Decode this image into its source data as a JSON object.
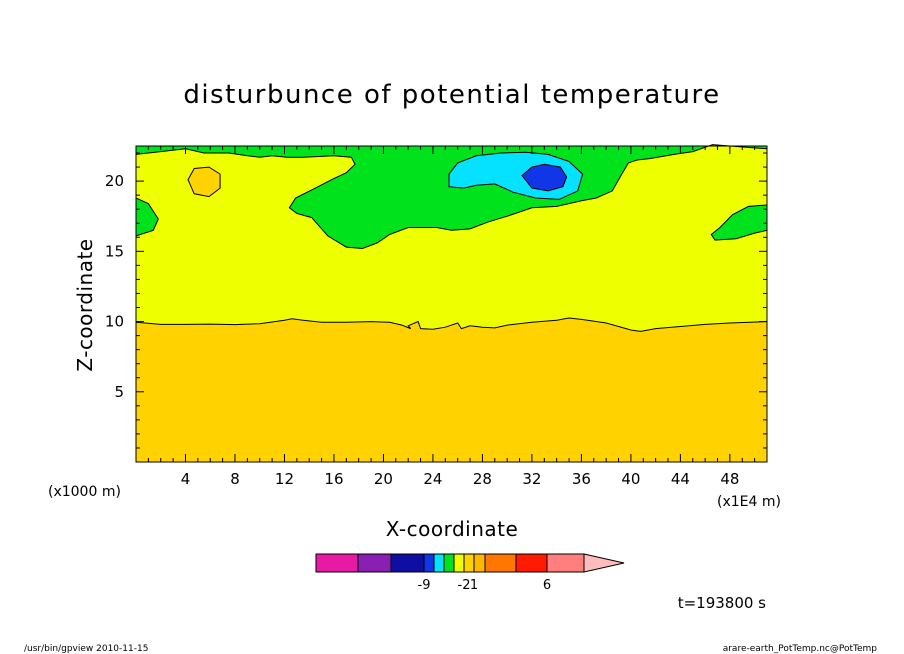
{
  "footer": {
    "left": "/usr/bin/gpview   2010-11-15",
    "right": "arare-earth_PotTemp.nc@PotTemp"
  },
  "chart_data": {
    "type": "heatmap",
    "title": "disturbunce of potential temperature",
    "xlabel": "X-coordinate",
    "ylabel": "Z-coordinate",
    "x_unit_label": "(x1E4 m)",
    "y_unit_label": "(x1000 m)",
    "xlim": [
      0,
      51
    ],
    "ylim": [
      0,
      22.5
    ],
    "x_ticks": [
      4,
      8,
      12,
      16,
      20,
      24,
      28,
      32,
      36,
      40,
      44,
      48
    ],
    "y_ticks": [
      5,
      10,
      15,
      20
    ],
    "time_label": "t=193800 s",
    "levels": [
      {
        "color": "#e81aa5"
      },
      {
        "color": "#8a1fb4"
      },
      {
        "color": "#0e0ea3",
        "label": "-9"
      },
      {
        "color": "#1136e8"
      },
      {
        "color": "#05e2ff"
      },
      {
        "color": "#00e21b"
      },
      {
        "color": "#eeff00",
        "label": "-2"
      },
      {
        "color": "#ffd200",
        "label": "1"
      },
      {
        "color": "#ffb700"
      },
      {
        "color": "#ff7600"
      },
      {
        "color": "#ff1a00",
        "label": "6"
      },
      {
        "color": "#ff7e7e"
      },
      {
        "color": "#ffbcbc"
      }
    ],
    "regions": {
      "top_band_color": "#00e21b",
      "upper_color": "#eeff00",
      "lower_color": "#ffd200",
      "blob_cyan_color": "#05e2ff",
      "blob_blue_color": "#1136e8",
      "blob_orange_color": "#ffd200"
    }
  }
}
